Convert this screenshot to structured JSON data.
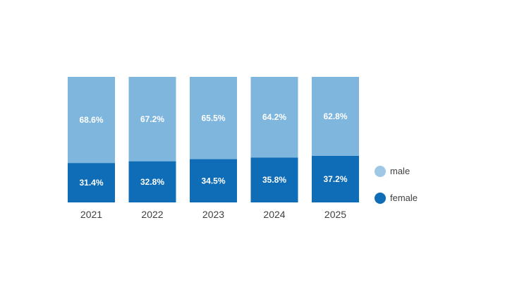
{
  "chart_data": {
    "type": "bar",
    "stacked": true,
    "normalized": true,
    "title": "",
    "xlabel": "",
    "ylabel": "",
    "ylim": [
      0,
      100
    ],
    "grid": false,
    "legend_position": "right",
    "categories": [
      "2021",
      "2022",
      "2023",
      "2024",
      "2025"
    ],
    "series": [
      {
        "name": "female",
        "color": "#0f6cb6",
        "values": [
          31.4,
          32.8,
          34.5,
          35.8,
          37.2
        ],
        "labels": [
          "31.4%",
          "32.8%",
          "34.5%",
          "35.8%",
          "37.2%"
        ]
      },
      {
        "name": "male",
        "color": "#7fb6dd",
        "values": [
          68.6,
          67.2,
          65.5,
          64.2,
          62.8
        ],
        "labels": [
          "68.6%",
          "67.2%",
          "65.5%",
          "64.2%",
          "62.8%"
        ]
      }
    ],
    "legend": [
      {
        "name": "male",
        "color": "#9fc8e6"
      },
      {
        "name": "female",
        "color": "#0f6cb6"
      }
    ]
  }
}
